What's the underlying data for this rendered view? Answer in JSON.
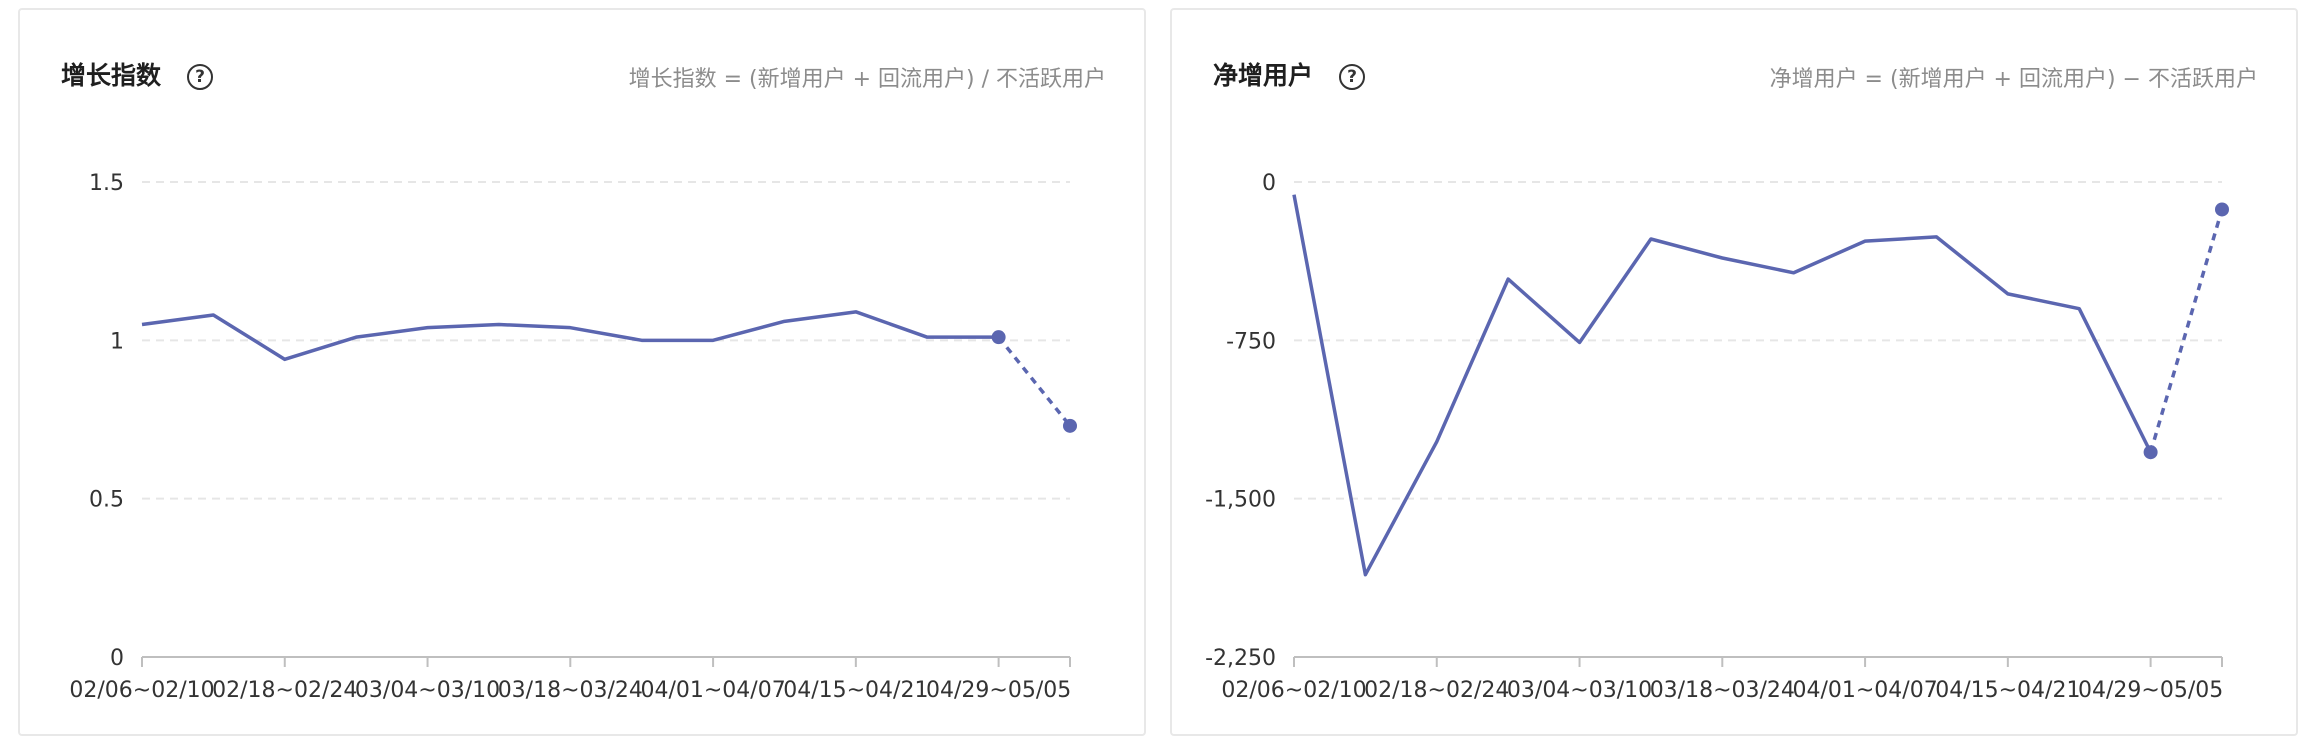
{
  "cards": [
    {
      "title": "增长指数",
      "help_icon": "question-circle-icon",
      "formula": "增长指数 = (新增用户 + 回流用户) / 不活跃用户"
    },
    {
      "title": "净增用户",
      "help_icon": "question-circle-icon",
      "formula": "净增用户 = (新增用户 + 回流用户) − 不活跃用户"
    }
  ],
  "colors": {
    "series": "#5b66b0",
    "grid": "#e6e6e6",
    "axis": "#bfbfbf",
    "tick_text": "#333333"
  },
  "chart_data": [
    {
      "type": "line",
      "title": "增长指数",
      "categories": [
        "02/06~02/10",
        "",
        "02/18~02/24",
        "",
        "03/04~03/10",
        "",
        "03/18~03/24",
        "",
        "04/01~04/07",
        "",
        "04/15~04/21",
        "",
        "04/29~05/05",
        ""
      ],
      "y_ticks": [
        0,
        0.5,
        1,
        1.5
      ],
      "y_tick_labels": [
        "0",
        "0.5",
        "1",
        "1.5"
      ],
      "ylim": [
        0,
        1.5
      ],
      "grid": true,
      "series": [
        {
          "values": [
            1.05,
            1.08,
            0.94,
            1.01,
            1.04,
            1.05,
            1.04,
            1.0,
            1.0,
            1.06,
            1.09,
            1.01,
            1.01,
            0.73
          ],
          "dashed_from_index": 12
        }
      ]
    },
    {
      "type": "line",
      "title": "净增用户",
      "categories": [
        "02/06~02/10",
        "",
        "02/18~02/24",
        "",
        "03/04~03/10",
        "",
        "03/18~03/24",
        "",
        "04/01~04/07",
        "",
        "04/15~04/21",
        "",
        "04/29~05/05",
        ""
      ],
      "y_ticks": [
        -2250,
        -1500,
        -750,
        0
      ],
      "y_tick_labels": [
        "-2,250",
        "-1,500",
        "-750",
        "0"
      ],
      "ylim": [
        -2250,
        0
      ],
      "grid": true,
      "series": [
        {
          "values": [
            -60,
            -1860,
            -1230,
            -460,
            -760,
            -270,
            -360,
            -430,
            -280,
            -260,
            -530,
            -600,
            -1280,
            -130
          ],
          "dashed_from_index": 12
        }
      ]
    }
  ]
}
